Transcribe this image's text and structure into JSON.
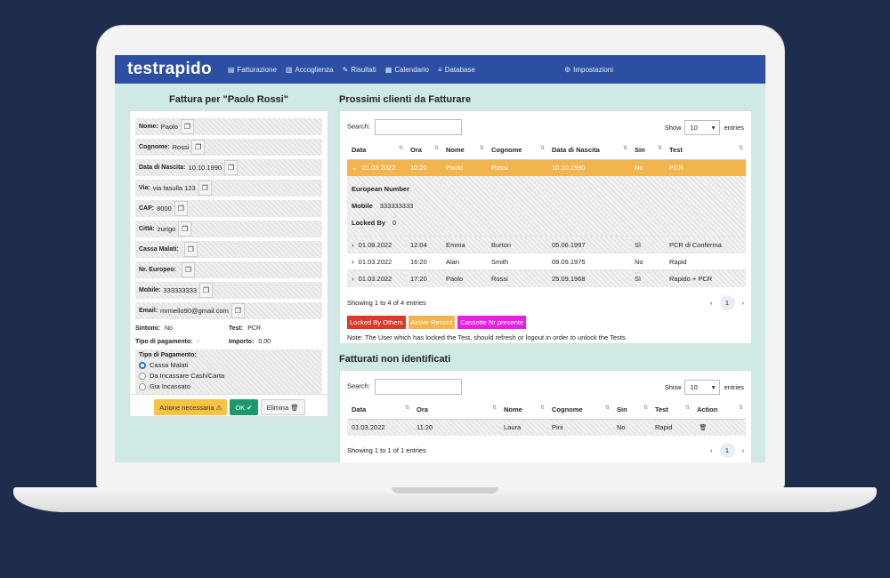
{
  "nav": {
    "brand": "testrapido",
    "items": [
      {
        "label": "Fatturazione",
        "icon": "file-icon"
      },
      {
        "label": "Accoglienza",
        "icon": "users-icon"
      },
      {
        "label": "Risultati",
        "icon": "pen-icon"
      },
      {
        "label": "Calendario",
        "icon": "calendar-icon"
      },
      {
        "label": "Database",
        "icon": "database-icon"
      }
    ],
    "settings": "Impostazioni"
  },
  "invoice": {
    "title": "Fattura per \"Paolo Rossi\"",
    "fields": [
      {
        "label": "Nome:",
        "value": "Paolo"
      },
      {
        "label": "Cognome:",
        "value": "Rossi"
      },
      {
        "label": "Data di Nascita:",
        "value": "10.10.1990"
      },
      {
        "label": "Via:",
        "value": "via fasulla 123"
      },
      {
        "label": "CAP:",
        "value": "8000"
      },
      {
        "label": "Città:",
        "value": "zurigo"
      },
      {
        "label": "Cassa Malati:",
        "value": ""
      },
      {
        "label": "Nr. Europeo:",
        "value": ""
      },
      {
        "label": "Mobile:",
        "value": "333333333"
      },
      {
        "label": "Email:",
        "value": "mrmello90@gmail.com"
      }
    ],
    "sintomi_label": "Sintomi:",
    "sintomi_value": "No",
    "test_label": "Test:",
    "test_value": "PCR",
    "tipo_label": "Tipo di pagamento:",
    "tipo_value": "-",
    "importo_label": "Importo:",
    "importo_value": "0.00",
    "payment_box_title": "Tipo di Pagamento:",
    "payment_options": [
      "Cassa Malati",
      "Da Incassare Cash/Carta",
      "Gia Incassato"
    ],
    "selected_payment": 0,
    "btn_action": "Azione necessaria",
    "btn_ok": "OK",
    "btn_delete": "Elimina"
  },
  "upcoming": {
    "title": "Prossimi clienti da Fatturare",
    "search_label": "Search:",
    "show_label": "Show",
    "show_value": "10",
    "entries_label": "entries",
    "columns": [
      "Data",
      "Ora",
      "Nome",
      "Cognome",
      "Data di Nascita",
      "Sin",
      "Test"
    ],
    "rows": [
      [
        "01.03.2022",
        "10:20",
        "Paolo",
        "Rossi",
        "10.10.1990",
        "No",
        "PCR"
      ],
      [
        "01.08.2022",
        "12:04",
        "Emma",
        "Burton",
        "05.06.1997",
        "Sì",
        "PCR di Conferma"
      ],
      [
        "01.03.2022",
        "16:20",
        "Alan",
        "Smith",
        "09.09.1975",
        "No",
        "Rapid"
      ],
      [
        "01.03.2022",
        "17:20",
        "Paolo",
        "Rossi",
        "25.09.1968",
        "Sì",
        "Rapido + PCR"
      ]
    ],
    "detail": {
      "european_label": "European Number",
      "mobile_label": "Mobile",
      "mobile_value": "333333333",
      "locked_label": "Locked By",
      "locked_value": "0"
    },
    "info": "Showing 1 to 4 of 4 entries",
    "page": "1",
    "legend": [
      {
        "label": "Locked By Others",
        "color": "#d93a2b"
      },
      {
        "label": "Active Record",
        "color": "#f2b44d"
      },
      {
        "label": "Cassette Nr presente",
        "color": "#e81ee0"
      }
    ],
    "note": "Note: The User which has locked the Test, should refresh or logout in order to unlock the Tests."
  },
  "unidentified": {
    "title": "Fatturati non identificati",
    "search_label": "Search:",
    "show_label": "Show",
    "show_value": "10",
    "entries_label": "entries",
    "columns": [
      "Data",
      "Ora",
      "Nome",
      "Cognome",
      "Sin",
      "Test",
      "Action"
    ],
    "rows": [
      [
        "01.03.2022",
        "11:20",
        "Laura",
        "Pini",
        "No",
        "Rapid"
      ]
    ],
    "info": "Showing 1 to 1 of 1 entries",
    "page": "1"
  }
}
